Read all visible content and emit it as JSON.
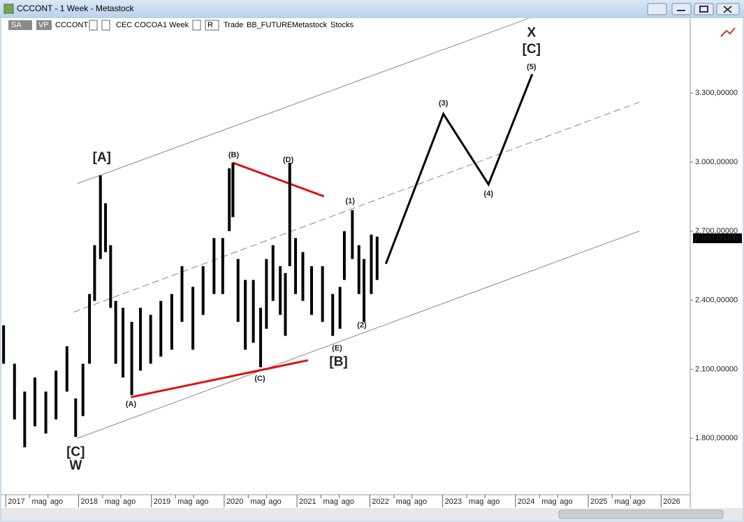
{
  "window": {
    "title": "CCCONT - 1 Week - Metastock"
  },
  "toolbar": [
    "SA",
    "VP",
    "CCCONT",
    "CEC COCOA",
    "1 Week",
    "R",
    "Trade",
    "BB_FUTURE",
    "Metastock",
    "Stocks"
  ],
  "chart_data": {
    "type": "high-low",
    "xlim": [
      2016.94,
      2026.4
    ],
    "ylim": [
      1555,
      3625
    ],
    "yticks": [
      {
        "value": 1800,
        "label": "1.800,00000"
      },
      {
        "value": 2100,
        "label": "2.100,00000"
      },
      {
        "value": 2400,
        "label": "2.400,00000"
      },
      {
        "value": 2700,
        "label": "2.700,00000"
      },
      {
        "value": 3000,
        "label": "3.000,00000"
      },
      {
        "value": 3300,
        "label": "3.300,00000"
      }
    ],
    "xticks": [
      {
        "value": 2017,
        "label": "2017"
      },
      {
        "value": 2017.33,
        "label": "mag"
      },
      {
        "value": 2017.58,
        "label": "ago"
      },
      {
        "value": 2018,
        "label": "2018"
      },
      {
        "value": 2018.33,
        "label": "mag"
      },
      {
        "value": 2018.58,
        "label": "ago"
      },
      {
        "value": 2019,
        "label": "2019"
      },
      {
        "value": 2019.33,
        "label": "mag"
      },
      {
        "value": 2019.58,
        "label": "ago"
      },
      {
        "value": 2020,
        "label": "2020"
      },
      {
        "value": 2020.33,
        "label": "mag"
      },
      {
        "value": 2020.58,
        "label": "ago"
      },
      {
        "value": 2021,
        "label": "2021"
      },
      {
        "value": 2021.33,
        "label": "mag"
      },
      {
        "value": 2021.58,
        "label": "ago"
      },
      {
        "value": 2022,
        "label": "2022"
      },
      {
        "value": 2022.33,
        "label": "mag"
      },
      {
        "value": 2022.58,
        "label": "ago"
      },
      {
        "value": 2023,
        "label": "2023"
      },
      {
        "value": 2023.33,
        "label": "mag"
      },
      {
        "value": 2023.58,
        "label": "ago"
      },
      {
        "value": 2024,
        "label": "2024"
      },
      {
        "value": 2024.33,
        "label": "mag"
      },
      {
        "value": 2024.58,
        "label": "ago"
      },
      {
        "value": 2025,
        "label": "2025"
      },
      {
        "value": 2025.33,
        "label": "mag"
      },
      {
        "value": 2025.58,
        "label": "ago"
      },
      {
        "value": 2026,
        "label": "2026"
      }
    ],
    "last_price": {
      "value": 2669,
      "label": "2.669,00000"
    },
    "series": [
      {
        "color": "#000000",
        "x": [
          2016.97,
          2017.12,
          2017.26,
          2017.4,
          2017.55,
          2017.69,
          2017.84,
          2017.96,
          2018.06,
          2018.15,
          2018.22,
          2018.3,
          2018.37,
          2018.44,
          2018.51,
          2018.61,
          2018.73,
          2018.85,
          2018.99,
          2019.13,
          2019.28,
          2019.42,
          2019.57,
          2019.71,
          2019.86,
          2019.98,
          2020.07,
          2020.12,
          2020.19,
          2020.29,
          2020.4,
          2020.5,
          2020.58,
          2020.67,
          2020.77,
          2020.84,
          2020.9,
          2020.98,
          2021.08,
          2021.2,
          2021.35,
          2021.49,
          2021.59,
          2021.65,
          2021.76,
          2021.85,
          2021.92,
          2022.02,
          2022.1
        ],
        "high": [
          2291,
          2124,
          2003,
          2064,
          2003,
          2094,
          2200,
          1973,
          2124,
          2427,
          2639,
          2942,
          2821,
          2639,
          2397,
          2367,
          2306,
          2367,
          2336,
          2397,
          2427,
          2548,
          2458,
          2548,
          2670,
          2670,
          2973,
          2997,
          2579,
          2488,
          2488,
          2367,
          2579,
          2639,
          2548,
          2518,
          2997,
          2670,
          2609,
          2548,
          2548,
          2427,
          2458,
          2700,
          2791,
          2639,
          2579,
          2685,
          2676
        ],
        "low": [
          2124,
          1882,
          1761,
          1852,
          1821,
          1882,
          2003,
          1806,
          1897,
          2124,
          2397,
          2579,
          2609,
          2367,
          2124,
          2064,
          1988,
          2094,
          2124,
          2155,
          2185,
          2306,
          2185,
          2336,
          2427,
          2427,
          2700,
          2761,
          2306,
          2185,
          2215,
          2109,
          2276,
          2397,
          2336,
          2245,
          2548,
          2427,
          2397,
          2336,
          2306,
          2245,
          2276,
          2488,
          2579,
          2427,
          2306,
          2427,
          2488
        ]
      }
    ],
    "lines": [
      {
        "color": "#888888",
        "dash": false,
        "x": [
          2017.98,
          2024.18
        ],
        "y": [
          2906,
          3624
        ]
      },
      {
        "color": "#888888",
        "dash": true,
        "x": [
          2017.93,
          2025.7
        ],
        "y": [
          2348,
          3260
        ]
      },
      {
        "color": "#888888",
        "dash": false,
        "x": [
          2017.98,
          2025.7
        ],
        "y": [
          1800,
          2700
        ]
      },
      {
        "color": "#dd1111",
        "dash": false,
        "x": [
          2018.72,
          2021.15
        ],
        "y": [
          1979,
          2139
        ]
      },
      {
        "color": "#dd1111",
        "dash": false,
        "x": [
          2020.12,
          2021.37
        ],
        "y": [
          2997,
          2851
        ]
      },
      {
        "color": "#000000",
        "dash": false,
        "x": [
          2022.22,
          2023.01,
          2023.63,
          2024.23
        ],
        "y": [
          2558,
          3209,
          2903,
          3382
        ]
      }
    ],
    "annotations": [
      {
        "text": "[A]",
        "color": "#e020c0",
        "x": 2018.32,
        "y": 3018
      },
      {
        "text": "(B)",
        "color": "#1a1aa0",
        "x": 2020.13,
        "y": 3030
      },
      {
        "text": "(D)",
        "color": "#1a1aa0",
        "x": 2020.88,
        "y": 3009
      },
      {
        "text": "(1)",
        "color": "#1a1aa0",
        "x": 2021.73,
        "y": 2830
      },
      {
        "text": "(3)",
        "color": "#1a1aa0",
        "x": 2023.01,
        "y": 3254
      },
      {
        "text": "(5)",
        "color": "#1a1aa0",
        "x": 2024.22,
        "y": 3412
      },
      {
        "text": "X",
        "color": "#1a8a1a",
        "x": 2024.22,
        "y": 3560
      },
      {
        "text": "[C]",
        "color": "#e020c0",
        "x": 2024.22,
        "y": 3488
      },
      {
        "text": "(4)",
        "color": "#1a1aa0",
        "x": 2023.63,
        "y": 2861
      },
      {
        "text": "(2)",
        "color": "#1a1aa0",
        "x": 2021.89,
        "y": 2291
      },
      {
        "text": "(E)",
        "color": "#1a1aa0",
        "x": 2021.55,
        "y": 2191
      },
      {
        "text": "[B]",
        "color": "#e020c0",
        "x": 2021.57,
        "y": 2130
      },
      {
        "text": "(C)",
        "color": "#1a1aa0",
        "x": 2020.49,
        "y": 2058
      },
      {
        "text": "(A)",
        "color": "#1a1aa0",
        "x": 2018.72,
        "y": 1948
      },
      {
        "text": "[C]",
        "color": "#e020c0",
        "x": 2017.96,
        "y": 1739
      },
      {
        "text": "W",
        "color": "#1a8a1a",
        "x": 2017.96,
        "y": 1679
      }
    ]
  }
}
